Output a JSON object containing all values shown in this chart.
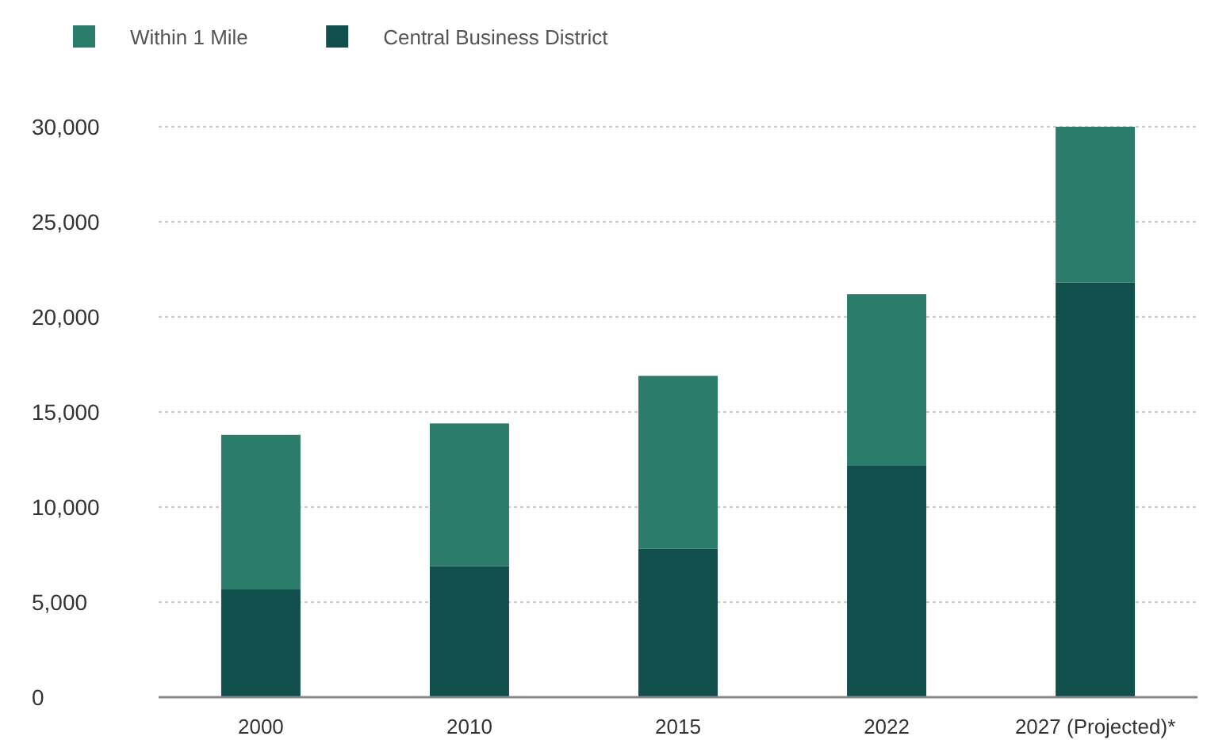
{
  "chart_data": {
    "type": "bar",
    "stacked": true,
    "categories": [
      "2000",
      "2010",
      "2015",
      "2022",
      "2027 (Projected)*"
    ],
    "series": [
      {
        "name": "Central Business District",
        "color": "#114f4c",
        "values": [
          5700,
          6900,
          7800,
          12200,
          21800
        ]
      },
      {
        "name": "Within 1 Mile",
        "color": "#2b7c6a",
        "values": [
          8100,
          7500,
          9100,
          9000,
          8200
        ]
      }
    ],
    "ylim": [
      0,
      30000
    ],
    "yticks": [
      {
        "value": 0,
        "label": "0"
      },
      {
        "value": 5000,
        "label": "5,000"
      },
      {
        "value": 10000,
        "label": "10,000"
      },
      {
        "value": 15000,
        "label": "15,000"
      },
      {
        "value": 20000,
        "label": "20,000"
      },
      {
        "value": 25000,
        "label": "25,000"
      },
      {
        "value": 30000,
        "label": "30,000"
      }
    ],
    "grid": "y",
    "legend": "top left"
  }
}
